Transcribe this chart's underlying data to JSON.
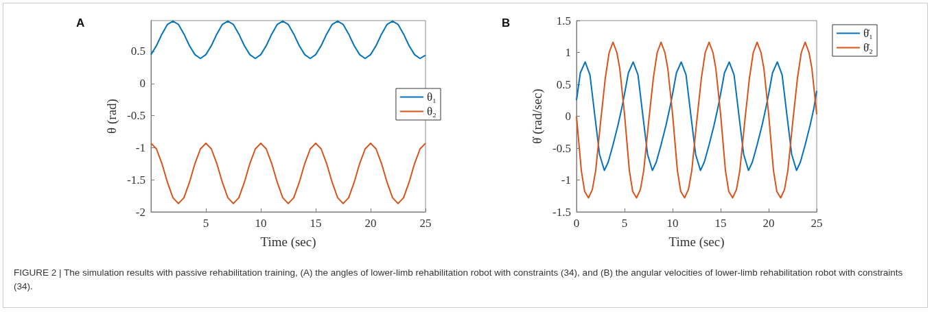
{
  "chart_data": [
    {
      "type": "line",
      "title": "A",
      "xlabel": "Time (sec)",
      "ylabel": "θ (rad)",
      "xlim": [
        0,
        25
      ],
      "xticks": [
        5,
        10,
        15,
        20,
        25
      ],
      "ylim": [
        -2,
        0.98
      ],
      "yticks": [
        -2,
        -1.5,
        -1,
        -0.5,
        0,
        0.5
      ],
      "grid": false,
      "legend": "right",
      "marker": "none",
      "line_style": "solid",
      "x": [
        0,
        0.5,
        1,
        1.5,
        2,
        2.5,
        3,
        3.5,
        4,
        4.5,
        5,
        5.5,
        6,
        6.5,
        7,
        7.5,
        8,
        8.5,
        9,
        9.5,
        10,
        10.5,
        11,
        11.5,
        12,
        12.5,
        13,
        13.5,
        14,
        14.5,
        15,
        15.5,
        16,
        16.5,
        17,
        17.5,
        18,
        18.5,
        19,
        19.5,
        20,
        20.5,
        21,
        21.5,
        22,
        22.5,
        23,
        23.5,
        24,
        24.5,
        25
      ],
      "series": [
        {
          "name": "θ₁",
          "color": "#0072bd",
          "values": [
            0.45,
            0.59,
            0.77,
            0.92,
            0.97,
            0.92,
            0.77,
            0.59,
            0.45,
            0.39,
            0.45,
            0.59,
            0.77,
            0.92,
            0.97,
            0.92,
            0.77,
            0.59,
            0.45,
            0.39,
            0.45,
            0.59,
            0.77,
            0.92,
            0.97,
            0.92,
            0.77,
            0.59,
            0.45,
            0.39,
            0.45,
            0.59,
            0.77,
            0.92,
            0.97,
            0.92,
            0.77,
            0.59,
            0.45,
            0.39,
            0.45,
            0.59,
            0.77,
            0.92,
            0.97,
            0.92,
            0.77,
            0.59,
            0.45,
            0.39,
            0.44
          ]
        },
        {
          "name": "θ₂",
          "color": "#d95319",
          "values": [
            -0.93,
            -1.02,
            -1.25,
            -1.54,
            -1.78,
            -1.87,
            -1.78,
            -1.54,
            -1.25,
            -1.02,
            -0.93,
            -1.02,
            -1.25,
            -1.54,
            -1.78,
            -1.87,
            -1.78,
            -1.54,
            -1.25,
            -1.02,
            -0.93,
            -1.02,
            -1.25,
            -1.54,
            -1.78,
            -1.87,
            -1.78,
            -1.54,
            -1.25,
            -1.02,
            -0.93,
            -1.02,
            -1.25,
            -1.54,
            -1.78,
            -1.87,
            -1.78,
            -1.54,
            -1.25,
            -1.02,
            -0.93,
            -1.02,
            -1.25,
            -1.54,
            -1.78,
            -1.87,
            -1.78,
            -1.54,
            -1.25,
            -1.02,
            -0.93
          ]
        }
      ]
    },
    {
      "type": "line",
      "title": "B",
      "xlabel": "Time (sec)",
      "ylabel": "θ̇ (rad/sec)",
      "xlim": [
        0,
        25
      ],
      "xticks": [
        0,
        5,
        10,
        15,
        20,
        25
      ],
      "ylim": [
        -1.5,
        1.5
      ],
      "yticks": [
        -1.5,
        -1,
        -0.5,
        0,
        0.5,
        1,
        1.5
      ],
      "grid": false,
      "legend": "top right",
      "marker": "none",
      "line_style": "solid",
      "series": [
        {
          "name": "θ̇₁",
          "color": "#0072bd",
          "x": [
            0,
            0.4,
            0.9,
            1.4,
            1.9,
            2.4,
            2.9,
            3.3,
            3.8,
            4.3,
            4.7,
            5,
            5.4,
            5.9,
            6.4,
            6.9,
            7.4,
            7.9,
            8.3,
            8.8,
            9.3,
            9.7,
            10,
            10.4,
            10.9,
            11.4,
            11.9,
            12.4,
            12.9,
            13.3,
            13.8,
            14.3,
            14.7,
            15,
            15.4,
            15.9,
            16.4,
            16.9,
            17.4,
            17.9,
            18.3,
            18.8,
            19.3,
            19.7,
            20,
            20.4,
            20.9,
            21.4,
            21.9,
            22.4,
            22.9,
            23.3,
            23.8,
            24.3,
            24.7,
            25
          ],
          "values": [
            0.25,
            0.68,
            0.85,
            0.65,
            0.02,
            -0.6,
            -0.85,
            -0.72,
            -0.45,
            -0.15,
            0.12,
            0.35,
            0.68,
            0.85,
            0.65,
            0.02,
            -0.6,
            -0.85,
            -0.72,
            -0.45,
            -0.15,
            0.12,
            0.35,
            0.68,
            0.85,
            0.65,
            0.02,
            -0.6,
            -0.85,
            -0.72,
            -0.45,
            -0.15,
            0.12,
            0.35,
            0.68,
            0.85,
            0.65,
            0.02,
            -0.6,
            -0.85,
            -0.72,
            -0.45,
            -0.15,
            0.12,
            0.35,
            0.68,
            0.85,
            0.65,
            0.02,
            -0.6,
            -0.85,
            -0.72,
            -0.45,
            -0.15,
            0.12,
            0.4
          ]
        },
        {
          "name": "θ̇₂",
          "color": "#d95319",
          "x": [
            0,
            0.5,
            0.85,
            1.25,
            1.65,
            2,
            2.5,
            3,
            3.4,
            3.8,
            4.2,
            4.5,
            5,
            5.5,
            5.85,
            6.25,
            6.65,
            7,
            7.5,
            8,
            8.4,
            8.8,
            9.2,
            9.5,
            10,
            10.5,
            10.85,
            11.25,
            11.65,
            12,
            12.5,
            13,
            13.4,
            13.8,
            14.2,
            14.5,
            15,
            15.5,
            15.85,
            16.25,
            16.65,
            17,
            17.5,
            18,
            18.4,
            18.8,
            19.2,
            19.5,
            20,
            20.5,
            20.85,
            21.25,
            21.65,
            22,
            22.5,
            23,
            23.4,
            23.8,
            24.2,
            24.5,
            25
          ],
          "values": [
            0,
            -0.85,
            -1.18,
            -1.28,
            -1.15,
            -0.85,
            -0.1,
            0.6,
            1.0,
            1.16,
            1.0,
            0.75,
            0.03,
            -0.85,
            -1.18,
            -1.28,
            -1.15,
            -0.85,
            -0.1,
            0.6,
            1.0,
            1.16,
            1.0,
            0.75,
            0.03,
            -0.85,
            -1.18,
            -1.28,
            -1.15,
            -0.85,
            -0.1,
            0.6,
            1.0,
            1.16,
            1.0,
            0.75,
            0.03,
            -0.85,
            -1.18,
            -1.28,
            -1.15,
            -0.85,
            -0.1,
            0.6,
            1.0,
            1.16,
            1.0,
            0.75,
            0.03,
            -0.85,
            -1.18,
            -1.28,
            -1.15,
            -0.85,
            -0.1,
            0.6,
            1.0,
            1.16,
            1.0,
            0.75,
            0.03
          ]
        }
      ]
    },
    {
      "type": "other",
      "annotations": [
        "FIGURE 2 | The simulation results with passive rehabilitation training, (A) the angles of lower-limb rehabilitation robot with constraints (34), and (B) the angular velocities of lower-limb rehabilitation robot with constraints (34)."
      ]
    }
  ]
}
